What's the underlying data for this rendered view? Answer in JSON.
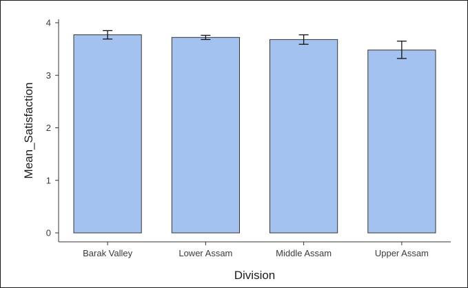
{
  "chart_data": {
    "type": "bar",
    "categories": [
      "Barak Valley",
      "Lower Assam",
      "Middle Assam",
      "Upper Assam"
    ],
    "values": [
      3.77,
      3.72,
      3.68,
      3.48
    ],
    "error_low": [
      3.69,
      3.68,
      3.59,
      3.32
    ],
    "error_high": [
      3.85,
      3.76,
      3.77,
      3.65
    ],
    "xlabel": "Division",
    "ylabel": "Mean_Satisfaction",
    "ylim": [
      0,
      4
    ],
    "yticks": [
      0,
      1,
      2,
      3,
      4
    ],
    "grid": false,
    "colors": {
      "bar_fill": "#a4c2f0",
      "bar_stroke": "#333333",
      "axis": "#333333",
      "error_bar": "#111111"
    }
  }
}
